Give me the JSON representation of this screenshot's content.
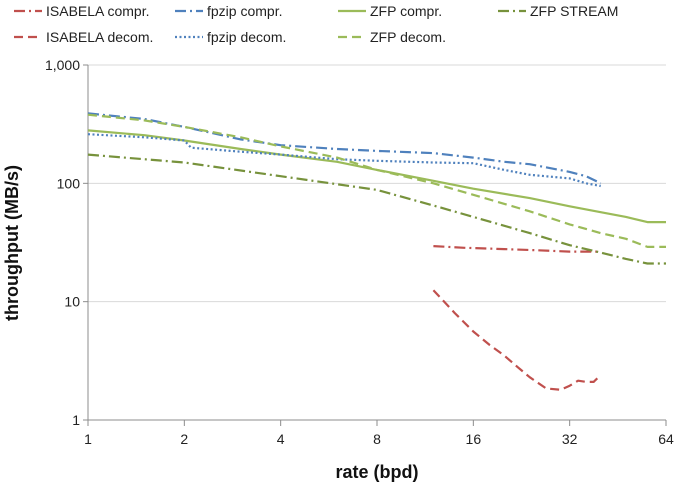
{
  "chart_data": {
    "type": "line",
    "title": "",
    "xlabel": "rate (bpd)",
    "ylabel": "throughput (MB/s)",
    "x_scale": "log2",
    "y_scale": "log10",
    "xlim": [
      1,
      64
    ],
    "ylim": [
      1,
      1000
    ],
    "x_ticks": [
      1,
      2,
      4,
      8,
      16,
      32,
      64
    ],
    "x_tick_labels": [
      "1",
      "2",
      "4",
      "8",
      "16",
      "32",
      "64"
    ],
    "y_ticks": [
      1,
      10,
      100,
      1000
    ],
    "y_tick_labels": [
      "1",
      "10",
      "100",
      "1,000"
    ],
    "grid": "horizontal",
    "legend_position": "top",
    "series": [
      {
        "name": "ISABELA compr.",
        "color": "#c0504d",
        "dash": "dash-dot",
        "x": [
          12,
          15,
          20,
          25,
          32,
          40
        ],
        "y": [
          29.5,
          28.5,
          27.8,
          27.2,
          26.5,
          26.5
        ]
      },
      {
        "name": "fpzip compr.",
        "color": "#4f81bd",
        "dash": "dash-dot",
        "x": [
          1,
          1.5,
          2,
          3,
          4,
          6,
          8,
          12,
          16,
          20,
          24,
          32,
          36,
          40
        ],
        "y": [
          390,
          350,
          300,
          235,
          210,
          195,
          188,
          180,
          165,
          152,
          145,
          125,
          115,
          100
        ]
      },
      {
        "name": "ZFP compr.",
        "color": "#9bbb59",
        "dash": "solid",
        "x": [
          1,
          1.5,
          2,
          3,
          4,
          6,
          8,
          12,
          16,
          24,
          32,
          40,
          48,
          56,
          64
        ],
        "y": [
          280,
          255,
          230,
          195,
          175,
          152,
          130,
          105,
          90,
          75,
          64,
          57,
          52,
          47,
          47
        ]
      },
      {
        "name": "ZFP STREAM",
        "color": "#77923c",
        "dash": "dash-dot",
        "x": [
          1,
          2,
          4,
          8,
          12,
          16,
          24,
          32,
          40,
          48,
          56,
          64
        ],
        "y": [
          175,
          150,
          115,
          88,
          65,
          52,
          38,
          30,
          26,
          23,
          21,
          21
        ]
      },
      {
        "name": "ISABELA decom.",
        "color": "#c0504d",
        "dash": "dashed",
        "x": [
          12,
          14,
          16,
          18,
          20,
          22,
          24,
          27,
          30,
          32,
          34,
          36,
          38,
          40
        ],
        "y": [
          12.5,
          8,
          5.6,
          4.3,
          3.5,
          2.8,
          2.3,
          1.85,
          1.8,
          1.95,
          2.15,
          2.1,
          2.1,
          2.4
        ]
      },
      {
        "name": "fpzip decom.",
        "color": "#4f81bd",
        "dash": "dotted",
        "x": [
          1,
          1.5,
          2,
          2.1,
          3,
          4,
          6,
          8,
          12,
          16,
          20,
          24,
          32,
          36,
          40
        ],
        "y": [
          260,
          245,
          230,
          200,
          185,
          175,
          160,
          155,
          150,
          148,
          130,
          118,
          110,
          100,
          95
        ]
      },
      {
        "name": "ZFP decom.",
        "color": "#9bbb59",
        "dash": "dashed",
        "x": [
          1,
          1.5,
          2,
          3,
          4,
          6,
          8,
          12,
          16,
          24,
          32,
          40,
          48,
          56,
          64
        ],
        "y": [
          380,
          340,
          300,
          245,
          205,
          165,
          130,
          100,
          80,
          58,
          45,
          38,
          34,
          29,
          29
        ]
      }
    ]
  }
}
